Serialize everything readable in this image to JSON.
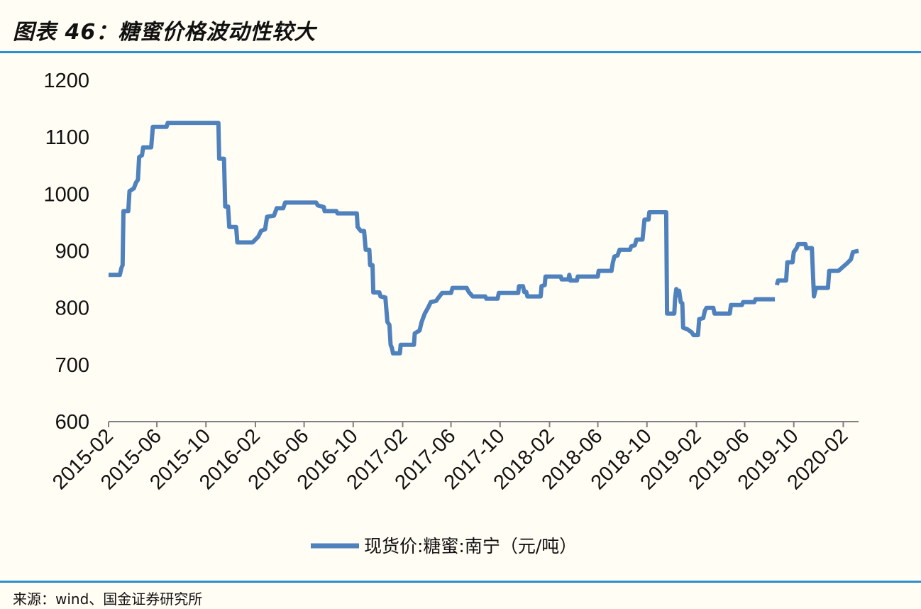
{
  "figure": {
    "title": "图表 46：糖蜜价格波动性较大",
    "source": "来源：wind、国金证券研究所"
  },
  "colors": {
    "line": "#4f81bd",
    "rule": "#2e8fcf",
    "axis": "#808080"
  },
  "chart_data": {
    "type": "line",
    "title": "",
    "xlabel": "",
    "ylabel": "",
    "ylim": [
      600,
      1200
    ],
    "yticks": [
      "600",
      "700",
      "800",
      "900",
      "1000",
      "1100",
      "1200"
    ],
    "xlim": [
      "2015-02-01",
      "2020-03-10"
    ],
    "xticks": [
      "2015-02",
      "2015-06",
      "2015-10",
      "2016-02",
      "2016-06",
      "2016-10",
      "2017-02",
      "2017-06",
      "2017-10",
      "2018-02",
      "2018-06",
      "2018-10",
      "2019-02",
      "2019-06",
      "2019-10",
      "2020-02"
    ],
    "grid": false,
    "legend": "bottom",
    "series": [
      {
        "name": "现货价:糖蜜:南宁（元/吨）",
        "segments": [
          [
            [
              "2015-02-01",
              858
            ],
            [
              "2015-03-01",
              858
            ],
            [
              "2015-03-05",
              870
            ],
            [
              "2015-03-08",
              875
            ],
            [
              "2015-03-10",
              970
            ],
            [
              "2015-03-22",
              970
            ],
            [
              "2015-03-25",
              1005
            ],
            [
              "2015-04-05",
              1010
            ],
            [
              "2015-04-10",
              1020
            ],
            [
              "2015-04-15",
              1025
            ],
            [
              "2015-04-18",
              1065
            ],
            [
              "2015-04-25",
              1068
            ],
            [
              "2015-04-28",
              1082
            ],
            [
              "2015-05-18",
              1082
            ],
            [
              "2015-05-22",
              1118
            ],
            [
              "2015-06-25",
              1118
            ],
            [
              "2015-06-28",
              1125
            ],
            [
              "2015-11-01",
              1125
            ],
            [
              "2015-11-03",
              1062
            ],
            [
              "2015-11-15",
              1062
            ],
            [
              "2015-11-18",
              978
            ],
            [
              "2015-11-25",
              978
            ],
            [
              "2015-11-28",
              942
            ],
            [
              "2015-12-15",
              942
            ],
            [
              "2015-12-18",
              915
            ],
            [
              "2016-01-25",
              915
            ],
            [
              "2016-02-08",
              925
            ],
            [
              "2016-02-15",
              935
            ],
            [
              "2016-02-25",
              938
            ],
            [
              "2016-03-01",
              960
            ],
            [
              "2016-03-18",
              962
            ],
            [
              "2016-03-25",
              975
            ],
            [
              "2016-04-10",
              975
            ],
            [
              "2016-04-15",
              985
            ],
            [
              "2016-07-01",
              985
            ],
            [
              "2016-07-05",
              980
            ],
            [
              "2016-07-20",
              977
            ],
            [
              "2016-07-22",
              970
            ],
            [
              "2016-08-20",
              970
            ],
            [
              "2016-08-23",
              966
            ],
            [
              "2016-10-10",
              966
            ],
            [
              "2016-10-12",
              942
            ],
            [
              "2016-10-20",
              935
            ],
            [
              "2016-10-28",
              935
            ],
            [
              "2016-11-01",
              902
            ],
            [
              "2016-11-10",
              902
            ],
            [
              "2016-11-12",
              875
            ],
            [
              "2016-11-18",
              875
            ],
            [
              "2016-11-20",
              827
            ],
            [
              "2016-12-05",
              827
            ],
            [
              "2016-12-08",
              820
            ],
            [
              "2016-12-20",
              818
            ],
            [
              "2016-12-25",
              775
            ],
            [
              "2016-12-30",
              770
            ],
            [
              "2017-01-02",
              735
            ],
            [
              "2017-01-05",
              730
            ],
            [
              "2017-01-08",
              720
            ],
            [
              "2017-01-25",
              720
            ],
            [
              "2017-01-27",
              735
            ],
            [
              "2017-03-01",
              735
            ],
            [
              "2017-03-03",
              755
            ],
            [
              "2017-03-15",
              760
            ],
            [
              "2017-03-20",
              775
            ],
            [
              "2017-03-28",
              790
            ],
            [
              "2017-04-05",
              800
            ],
            [
              "2017-04-12",
              810
            ],
            [
              "2017-04-25",
              812
            ],
            [
              "2017-05-01",
              818
            ],
            [
              "2017-05-10",
              826
            ],
            [
              "2017-06-01",
              826
            ],
            [
              "2017-06-05",
              835
            ],
            [
              "2017-07-10",
              835
            ],
            [
              "2017-07-15",
              828
            ],
            [
              "2017-07-25",
              820
            ],
            [
              "2017-08-25",
              820
            ],
            [
              "2017-08-28",
              816
            ],
            [
              "2017-09-25",
              816
            ],
            [
              "2017-09-28",
              826
            ],
            [
              "2017-11-15",
              826
            ],
            [
              "2017-11-17",
              838
            ],
            [
              "2017-11-27",
              838
            ],
            [
              "2017-11-30",
              828
            ],
            [
              "2017-12-05",
              828
            ],
            [
              "2017-12-08",
              820
            ],
            [
              "2018-01-10",
              820
            ],
            [
              "2018-01-12",
              838
            ],
            [
              "2018-01-20",
              840
            ],
            [
              "2018-01-22",
              855
            ],
            [
              "2018-03-01",
              855
            ],
            [
              "2018-03-03",
              850
            ],
            [
              "2018-03-20",
              850
            ],
            [
              "2018-03-22",
              858
            ],
            [
              "2018-03-25",
              848
            ],
            [
              "2018-04-10",
              848
            ],
            [
              "2018-04-12",
              855
            ],
            [
              "2018-06-01",
              855
            ],
            [
              "2018-06-03",
              865
            ],
            [
              "2018-07-05",
              865
            ],
            [
              "2018-07-08",
              878
            ],
            [
              "2018-07-12",
              890
            ],
            [
              "2018-07-20",
              892
            ],
            [
              "2018-07-25",
              902
            ],
            [
              "2018-08-20",
              902
            ],
            [
              "2018-08-23",
              908
            ],
            [
              "2018-09-01",
              910
            ],
            [
              "2018-09-05",
              920
            ],
            [
              "2018-09-20",
              920
            ],
            [
              "2018-09-25",
              955
            ],
            [
              "2018-10-05",
              955
            ],
            [
              "2018-10-07",
              968
            ],
            [
              "2018-11-18",
              968
            ],
            [
              "2018-11-20",
              790
            ],
            [
              "2018-12-08",
              790
            ],
            [
              "2018-12-10",
              815
            ],
            [
              "2018-12-13",
              833
            ],
            [
              "2018-12-18",
              822
            ],
            [
              "2018-12-20",
              830
            ],
            [
              "2018-12-24",
              810
            ],
            [
              "2018-12-28",
              808
            ],
            [
              "2018-12-30",
              765
            ],
            [
              "2019-01-10",
              762
            ],
            [
              "2019-01-20",
              757
            ],
            [
              "2019-01-25",
              752
            ],
            [
              "2019-02-05",
              752
            ],
            [
              "2019-02-08",
              780
            ],
            [
              "2019-02-18",
              782
            ],
            [
              "2019-02-22",
              795
            ],
            [
              "2019-02-26",
              800
            ],
            [
              "2019-03-15",
              800
            ],
            [
              "2019-03-18",
              790
            ],
            [
              "2019-04-25",
              790
            ],
            [
              "2019-04-28",
              805
            ],
            [
              "2019-05-25",
              805
            ],
            [
              "2019-05-28",
              810
            ],
            [
              "2019-06-25",
              810
            ],
            [
              "2019-06-28",
              815
            ],
            [
              "2019-08-15",
              815
            ]
          ],
          [
            [
              "2019-08-20",
              840
            ],
            [
              "2019-08-23",
              848
            ],
            [
              "2019-09-12",
              848
            ],
            [
              "2019-09-15",
              880
            ],
            [
              "2019-09-28",
              880
            ],
            [
              "2019-10-01",
              898
            ],
            [
              "2019-10-08",
              905
            ],
            [
              "2019-10-12",
              912
            ],
            [
              "2019-10-30",
              912
            ],
            [
              "2019-11-01",
              905
            ],
            [
              "2019-11-15",
              905
            ],
            [
              "2019-11-20",
              820
            ],
            [
              "2019-11-25",
              835
            ],
            [
              "2019-12-25",
              835
            ],
            [
              "2019-12-28",
              865
            ],
            [
              "2020-01-20",
              865
            ],
            [
              "2020-02-10",
              878
            ],
            [
              "2020-02-20",
              885
            ],
            [
              "2020-02-25",
              898
            ],
            [
              "2020-03-10",
              900
            ]
          ]
        ]
      }
    ]
  }
}
